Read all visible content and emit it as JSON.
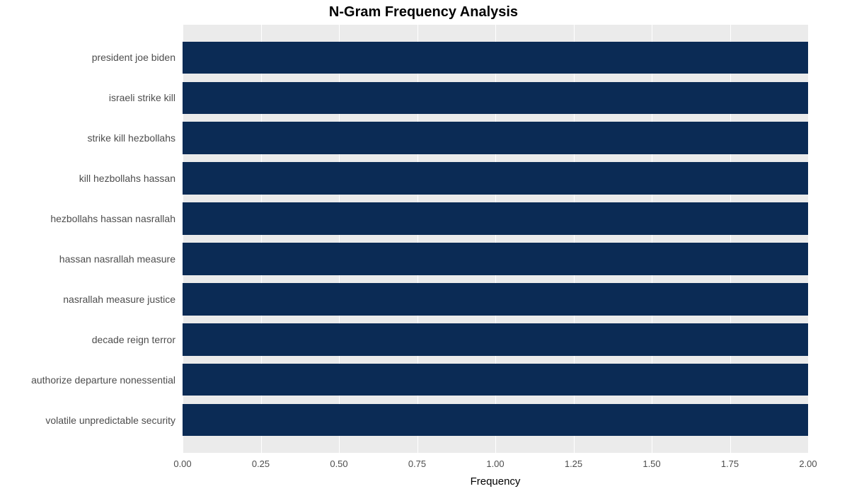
{
  "chart": {
    "type": "bar-horizontal",
    "title": "N-Gram Frequency Analysis",
    "title_fontsize": 20,
    "title_fontweight": "bold",
    "title_color": "#000000",
    "x_axis_title": "Frequency",
    "x_axis_title_fontsize": 15,
    "axis_tick_fontsize": 13,
    "y_tick_fontsize": 14,
    "panel_bg": "#ebebeb",
    "grid_color": "#ffffff",
    "bar_color": "#0b2b55",
    "bar_fill_opacity": 1.0,
    "xlim": [
      0.0,
      2.0
    ],
    "xticks": [
      0.0,
      0.25,
      0.5,
      0.75,
      1.0,
      1.25,
      1.5,
      1.75,
      2.0
    ],
    "xtick_labels": [
      "0.00",
      "0.25",
      "0.50",
      "0.75",
      "1.00",
      "1.25",
      "1.50",
      "1.75",
      "2.00"
    ],
    "bar_rel_height": 0.8,
    "categories": [
      "president joe biden",
      "israeli strike kill",
      "strike kill hezbollahs",
      "kill hezbollahs hassan",
      "hezbollahs hassan nasrallah",
      "hassan nasrallah measure",
      "nasrallah measure justice",
      "decade reign terror",
      "authorize departure nonessential",
      "volatile unpredictable security"
    ],
    "values": [
      2.0,
      2.0,
      2.0,
      2.0,
      2.0,
      2.0,
      2.0,
      2.0,
      2.0,
      2.0
    ]
  }
}
